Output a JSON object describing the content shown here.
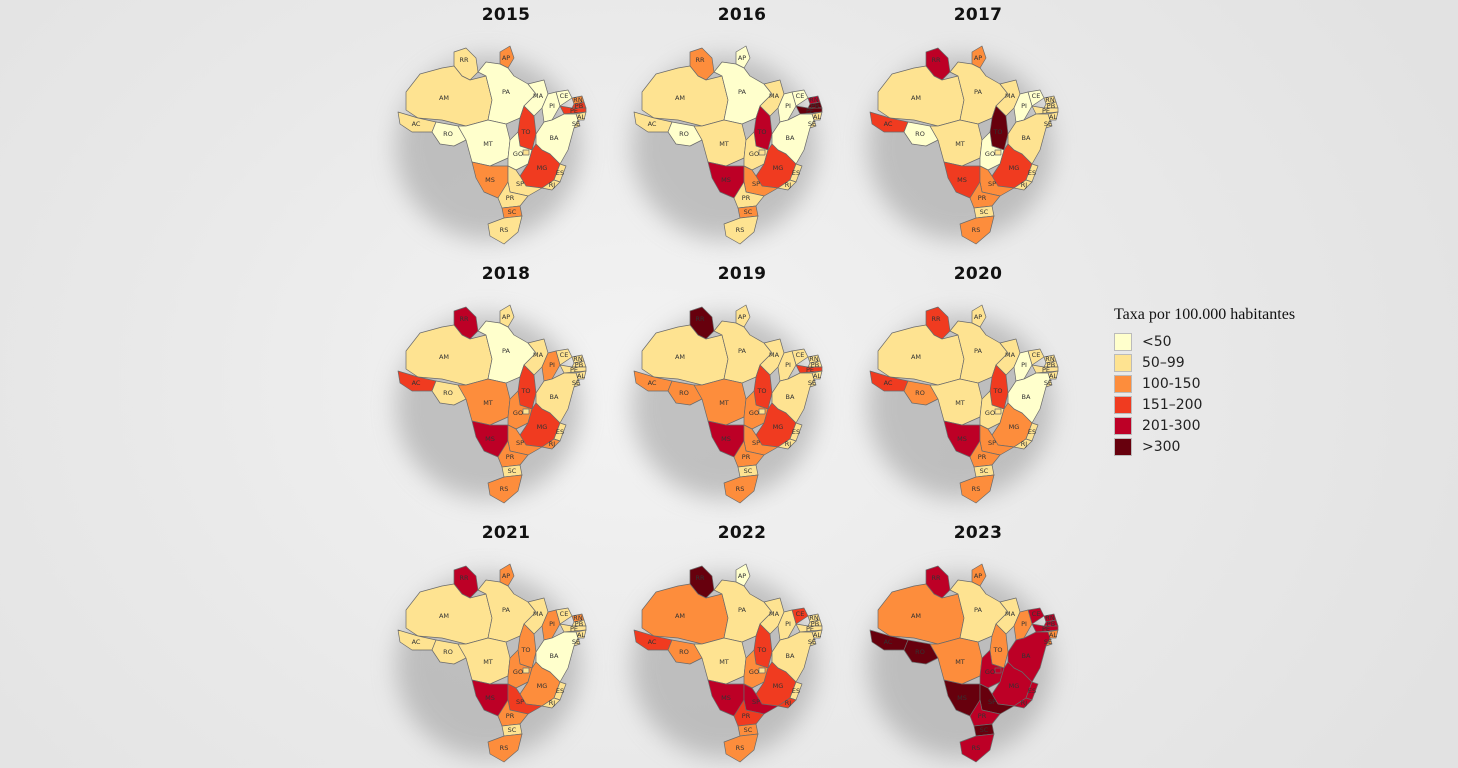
{
  "scale": {
    "colors": {
      "1": "#ffffcc",
      "2": "#fee391",
      "3": "#fd8d3c",
      "4": "#f03b20",
      "5": "#bd0026",
      "6": "#67000d"
    }
  },
  "legend": {
    "title": "Taxa por 100.000 habitantes",
    "items": [
      {
        "label": "<50",
        "color": "#ffffcc"
      },
      {
        "label": "50–99",
        "color": "#fee391"
      },
      {
        "label": "100-150",
        "color": "#fd8d3c"
      },
      {
        "label": "151–200",
        "color": "#f03b20"
      },
      {
        "label": "201-300",
        "color": "#bd0026"
      },
      {
        "label": ">300",
        "color": "#67000d"
      }
    ]
  },
  "chart_data": {
    "type": "choropleth",
    "value_unit": "rate class per 100.000 inhabitants (1=<50, 2=50–99, 3=100-150, 4=151–200, 5=201-300, 6=>300)",
    "states": [
      "RR",
      "AP",
      "AM",
      "PA",
      "MA",
      "CE",
      "RN",
      "PB",
      "PE",
      "AL",
      "SE",
      "PI",
      "AC",
      "RO",
      "MT",
      "TO",
      "BA",
      "GO",
      "DF",
      "MG",
      "ES",
      "RJ",
      "MS",
      "SP",
      "PR",
      "SC",
      "RS"
    ],
    "maps": [
      {
        "year": "2015",
        "classes": {
          "RR": 2,
          "AP": 3,
          "AM": 2,
          "PA": 1,
          "MA": 1,
          "CE": 1,
          "RN": 3,
          "PB": 4,
          "PE": 4,
          "AL": 2,
          "SE": 2,
          "PI": 1,
          "AC": 2,
          "RO": 1,
          "MT": 1,
          "TO": 4,
          "BA": 1,
          "GO": 1,
          "DF": 2,
          "MG": 4,
          "ES": 2,
          "RJ": 2,
          "MS": 3,
          "SP": 2,
          "PR": 2,
          "SC": 3,
          "RS": 2
        }
      },
      {
        "year": "2016",
        "classes": {
          "RR": 3,
          "AP": 1,
          "AM": 2,
          "PA": 1,
          "MA": 2,
          "CE": 1,
          "RN": 5,
          "PB": 6,
          "PE": 6,
          "AL": 2,
          "SE": 2,
          "PI": 1,
          "AC": 2,
          "RO": 1,
          "MT": 2,
          "TO": 5,
          "BA": 1,
          "GO": 2,
          "DF": 2,
          "MG": 4,
          "ES": 2,
          "RJ": 2,
          "MS": 5,
          "SP": 3,
          "PR": 2,
          "SC": 3,
          "RS": 2
        }
      },
      {
        "year": "2017",
        "classes": {
          "RR": 5,
          "AP": 3,
          "AM": 2,
          "PA": 2,
          "MA": 2,
          "CE": 1,
          "RN": 2,
          "PB": 2,
          "PE": 2,
          "AL": 2,
          "SE": 2,
          "PI": 1,
          "AC": 4,
          "RO": 1,
          "MT": 2,
          "TO": 6,
          "BA": 2,
          "GO": 1,
          "DF": 2,
          "MG": 4,
          "ES": 2,
          "RJ": 2,
          "MS": 4,
          "SP": 3,
          "PR": 3,
          "SC": 2,
          "RS": 3
        }
      },
      {
        "year": "2018",
        "classes": {
          "RR": 5,
          "AP": 2,
          "AM": 2,
          "PA": 1,
          "MA": 2,
          "CE": 2,
          "RN": 2,
          "PB": 2,
          "PE": 2,
          "AL": 2,
          "SE": 2,
          "PI": 3,
          "AC": 4,
          "RO": 2,
          "MT": 3,
          "TO": 4,
          "BA": 2,
          "GO": 3,
          "DF": 2,
          "MG": 4,
          "ES": 2,
          "RJ": 3,
          "MS": 5,
          "SP": 3,
          "PR": 3,
          "SC": 2,
          "RS": 3
        }
      },
      {
        "year": "2019",
        "classes": {
          "RR": 6,
          "AP": 2,
          "AM": 2,
          "PA": 2,
          "MA": 2,
          "CE": 2,
          "RN": 2,
          "PB": 2,
          "PE": 4,
          "AL": 2,
          "SE": 2,
          "PI": 2,
          "AC": 3,
          "RO": 3,
          "MT": 3,
          "TO": 4,
          "BA": 2,
          "GO": 3,
          "DF": 2,
          "MG": 4,
          "ES": 2,
          "RJ": 2,
          "MS": 5,
          "SP": 3,
          "PR": 3,
          "SC": 2,
          "RS": 3
        }
      },
      {
        "year": "2020",
        "classes": {
          "RR": 4,
          "AP": 2,
          "AM": 2,
          "PA": 2,
          "MA": 2,
          "CE": 2,
          "RN": 2,
          "PB": 2,
          "PE": 2,
          "AL": 2,
          "SE": 2,
          "PI": 1,
          "AC": 4,
          "RO": 3,
          "MT": 2,
          "TO": 4,
          "BA": 1,
          "GO": 2,
          "DF": 2,
          "MG": 3,
          "ES": 2,
          "RJ": 2,
          "MS": 5,
          "SP": 3,
          "PR": 3,
          "SC": 2,
          "RS": 3
        }
      },
      {
        "year": "2021",
        "classes": {
          "RR": 5,
          "AP": 3,
          "AM": 2,
          "PA": 2,
          "MA": 2,
          "CE": 2,
          "RN": 3,
          "PB": 2,
          "PE": 2,
          "AL": 2,
          "SE": 2,
          "PI": 3,
          "AC": 2,
          "RO": 2,
          "MT": 2,
          "TO": 3,
          "BA": 1,
          "GO": 3,
          "DF": 2,
          "MG": 3,
          "ES": 2,
          "RJ": 2,
          "MS": 5,
          "SP": 4,
          "PR": 3,
          "SC": 2,
          "RS": 3
        }
      },
      {
        "year": "2022",
        "classes": {
          "RR": 6,
          "AP": 1,
          "AM": 3,
          "PA": 2,
          "MA": 2,
          "CE": 4,
          "RN": 2,
          "PB": 2,
          "PE": 2,
          "AL": 2,
          "SE": 2,
          "PI": 2,
          "AC": 4,
          "RO": 3,
          "MT": 2,
          "TO": 4,
          "BA": 2,
          "GO": 3,
          "DF": 2,
          "MG": 4,
          "ES": 2,
          "RJ": 4,
          "MS": 5,
          "SP": 5,
          "PR": 4,
          "SC": 3,
          "RS": 3
        }
      },
      {
        "year": "2023",
        "classes": {
          "RR": 5,
          "AP": 3,
          "AM": 3,
          "PA": 2,
          "MA": 2,
          "CE": 5,
          "RN": 5,
          "PB": 5,
          "PE": 5,
          "AL": 3,
          "SE": 3,
          "PI": 3,
          "AC": 6,
          "RO": 6,
          "MT": 3,
          "TO": 3,
          "BA": 5,
          "GO": 5,
          "DF": 5,
          "MG": 5,
          "ES": 5,
          "RJ": 5,
          "MS": 6,
          "SP": 6,
          "PR": 5,
          "SC": 6,
          "RS": 5
        }
      }
    ]
  }
}
